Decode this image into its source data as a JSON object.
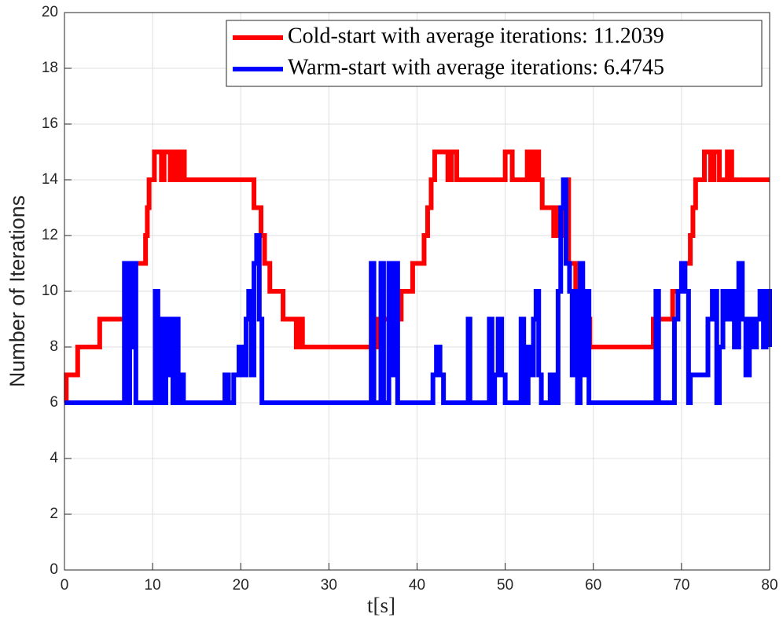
{
  "chart_data": {
    "type": "line",
    "drawstyle": "steps-post",
    "grid": true,
    "legend": "upper right",
    "xlabel": "t[s]",
    "ylabel": "Number of Iterations",
    "xlim": [
      0,
      80
    ],
    "ylim": [
      0,
      20
    ],
    "xticks": [
      0,
      10,
      20,
      30,
      40,
      50,
      60,
      70,
      80
    ],
    "yticks": [
      0,
      2,
      4,
      6,
      8,
      10,
      12,
      14,
      16,
      18,
      20
    ],
    "series": [
      {
        "name": "Cold-start with average iterations: 11.2039",
        "color": "#ff0000",
        "x": [
          0,
          0.2,
          1.5,
          4,
          7.8,
          8,
          9.2,
          9.4,
          9.6,
          10.2,
          11,
          11.3,
          12,
          12.5,
          12.8,
          13.3,
          13.6,
          21.5,
          22.3,
          22.7,
          23.3,
          24.8,
          26.3,
          26.5,
          27,
          35.5,
          38.2,
          39.5,
          40.8,
          41.2,
          41.6,
          42,
          43.5,
          43.9,
          44.5,
          50,
          50.8,
          52.5,
          53,
          53.3,
          53.8,
          54.2,
          55.5,
          55.8,
          56.3,
          56.7,
          57.2,
          58,
          58.8,
          59.6,
          66.8,
          69,
          70.2,
          71,
          71.3,
          71.6,
          72.6,
          73.3,
          73.7,
          74.3,
          75.2,
          75.7,
          80
        ],
        "values": [
          6,
          7,
          8,
          9,
          10,
          11,
          12,
          13,
          14,
          15,
          14,
          15,
          14,
          15,
          14,
          15,
          14,
          13,
          12,
          11,
          10,
          9,
          8,
          9,
          8,
          9,
          10,
          11,
          12,
          13,
          14,
          15,
          14,
          15,
          14,
          15,
          14,
          15,
          14,
          15,
          14,
          13,
          12,
          13,
          12,
          14,
          11,
          10,
          9,
          8,
          9,
          10,
          11,
          12,
          13,
          14,
          15,
          14,
          15,
          14,
          15,
          14,
          14
        ]
      },
      {
        "name": "Warm-start with average iterations: 6.4745",
        "color": "#0000ff",
        "x": [
          0,
          6.8,
          7.1,
          7.4,
          7.6,
          7.8,
          8.1,
          10.3,
          10.6,
          10.9,
          11.2,
          11.5,
          11.8,
          12,
          12.3,
          12.6,
          12.9,
          13.2,
          13.5,
          18.2,
          18.6,
          19.2,
          19.8,
          20.3,
          20.6,
          20.9,
          21.2,
          21.5,
          21.8,
          22.1,
          22.4,
          34.8,
          35.1,
          35.9,
          36.2,
          36.8,
          37.1,
          37.5,
          37.8,
          41.8,
          42.2,
          42.6,
          43,
          45.8,
          46,
          48.2,
          48.5,
          48.8,
          49.2,
          49.6,
          50,
          51.8,
          52.1,
          52.6,
          52.9,
          53.2,
          53.5,
          53.8,
          54.1,
          55.1,
          55.5,
          56,
          56.3,
          56.6,
          56.9,
          57.3,
          57.6,
          57.9,
          58.2,
          58.5,
          58.8,
          59.2,
          59.5,
          67.1,
          67.4,
          69.2,
          69.6,
          70,
          70.4,
          70.8,
          71,
          73,
          73.5,
          74,
          74.3,
          74.7,
          75.2,
          75.6,
          76,
          76.5,
          76.9,
          77.3,
          77.7,
          78.1,
          78.5,
          78.9,
          79.3,
          79.6,
          80
        ],
        "values": [
          6,
          11,
          6,
          11,
          8,
          11,
          6,
          10,
          6,
          9,
          6,
          9,
          7,
          9,
          6,
          9,
          6,
          7,
          6,
          7,
          6,
          7,
          8,
          7,
          9,
          10,
          7,
          11,
          12,
          9,
          6,
          11,
          6,
          11,
          6,
          11,
          7,
          11,
          6,
          7,
          8,
          7,
          6,
          9,
          6,
          9,
          6,
          7,
          9,
          7,
          6,
          9,
          6,
          8,
          7,
          9,
          10,
          7,
          6,
          7,
          6,
          10,
          13,
          14,
          11,
          10,
          7,
          10,
          6,
          11,
          7,
          10,
          6,
          10,
          6,
          9,
          10,
          11,
          10,
          6,
          7,
          9,
          10,
          6,
          8,
          10,
          9,
          10,
          8,
          11,
          9,
          7,
          9,
          8,
          9,
          10,
          8,
          10,
          8
        ]
      }
    ]
  }
}
